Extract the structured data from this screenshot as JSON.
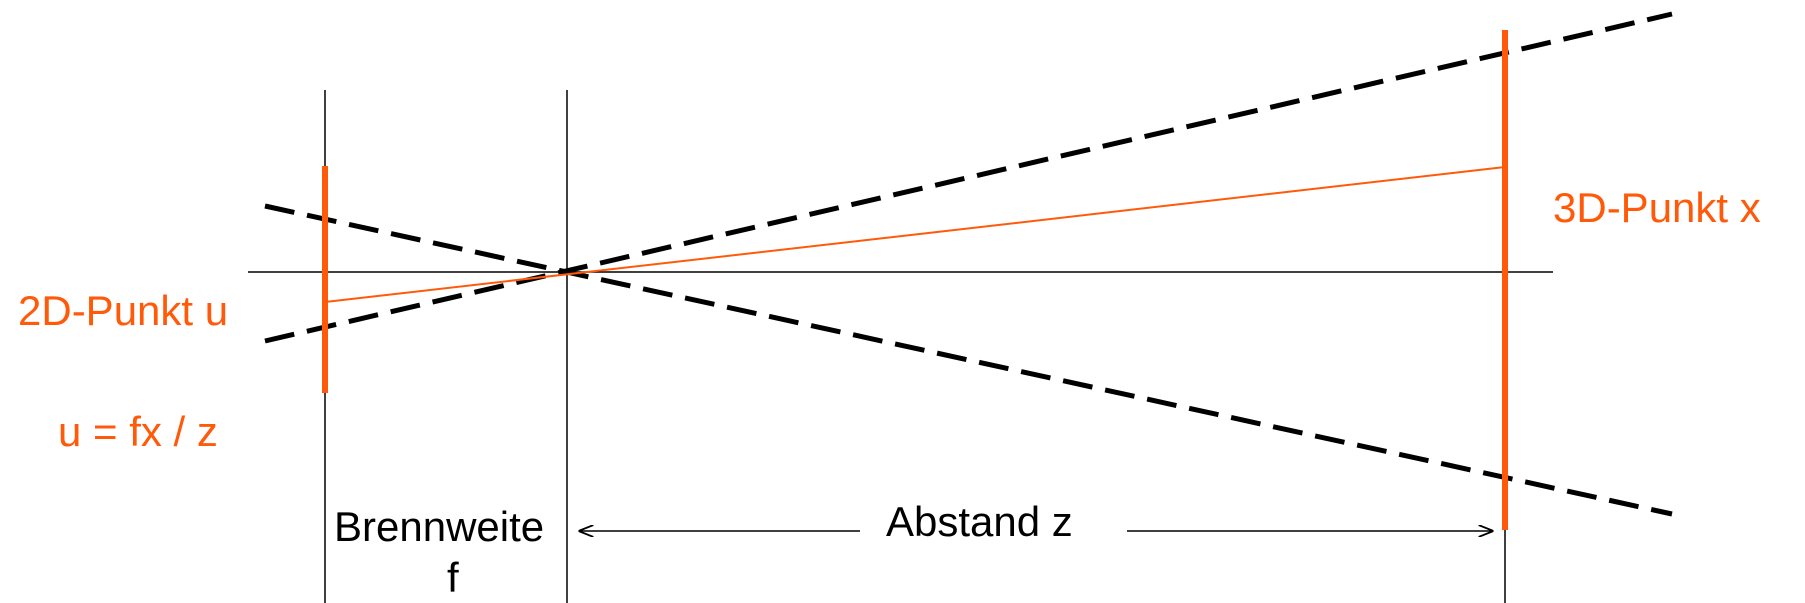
{
  "labels": {
    "point_3d": "3D-Punkt x",
    "point_2d": "2D-Punkt u",
    "formula": "u = fx / z",
    "focal_length_line1": "Brennweite",
    "focal_length_line2": "f",
    "distance": "Abstand z"
  },
  "colors": {
    "accent": "#ff5a0a",
    "ink": "#000000",
    "background": "#ffffff"
  }
}
